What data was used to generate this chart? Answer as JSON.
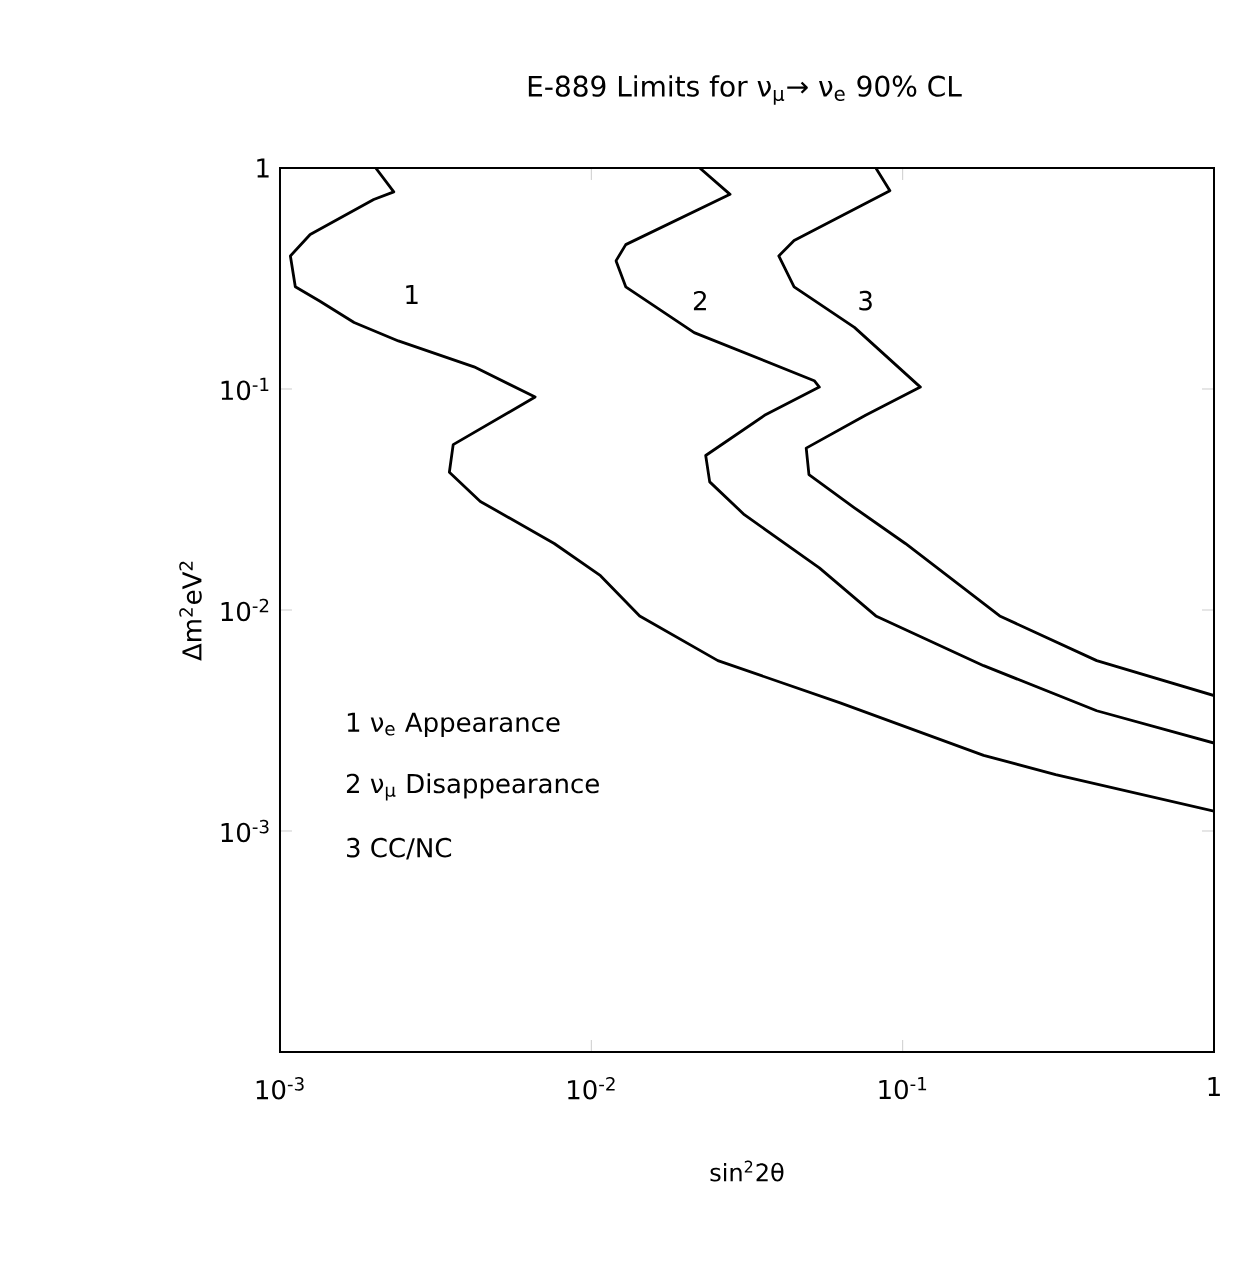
{
  "chart_data": {
    "type": "line",
    "title": "E-889 Limits for ν$_{μ}$→ ν$_{e}$ 90% CL",
    "xlabel": "sin$^{2}$2θ",
    "ylabel": "Δm$^{2}$eV$^{2}$",
    "log": "xy",
    "marker": "none",
    "line_style": "solid",
    "xlim": [
      0.001,
      1
    ],
    "ylim": [
      0.0001,
      1
    ],
    "xticks": [
      {
        "value": 0.001,
        "label": "10$^{-3}$"
      },
      {
        "value": 0.01,
        "label": "10$^{-2}$"
      },
      {
        "value": 0.1,
        "label": "10$^{-1}$"
      },
      1
    ],
    "yticks": [
      {
        "value": 0.0001,
        "label": null
      },
      {
        "value": 0.001,
        "label": "10$^{-3}$"
      },
      {
        "value": 0.01,
        "label": "10$^{-2}$"
      },
      {
        "value": 0.1,
        "label": "10$^{-1}$"
      },
      1
    ],
    "series": [
      {
        "color": "#000000",
        "x": [
          0.00203,
          0.00232,
          0.002,
          0.00125,
          0.00108,
          0.00112,
          0.00134,
          0.00173,
          0.0024,
          0.0042,
          0.0066,
          0.0036,
          0.0035,
          0.0044,
          0.0076,
          0.0107,
          0.0143,
          0.0255,
          0.063,
          0.182,
          0.31,
          1
        ],
        "values": [
          1,
          0.78,
          0.72,
          0.5,
          0.4,
          0.29,
          0.25,
          0.2,
          0.165,
          0.126,
          0.092,
          0.056,
          0.042,
          0.031,
          0.02,
          0.0143,
          0.0094,
          0.0059,
          0.0038,
          0.0022,
          0.0018,
          0.00123
        ]
      },
      {
        "color": "#000000",
        "x": [
          0.0223,
          0.0279,
          0.0129,
          0.012,
          0.0129,
          0.0214,
          0.052,
          0.054,
          0.036,
          0.0233,
          0.024,
          0.031,
          0.054,
          0.082,
          0.182,
          0.42,
          1
        ],
        "values": [
          1,
          0.76,
          0.45,
          0.38,
          0.29,
          0.18,
          0.109,
          0.102,
          0.076,
          0.05,
          0.038,
          0.027,
          0.0155,
          0.0094,
          0.0056,
          0.0035,
          0.0025
        ]
      },
      {
        "color": "#000000",
        "x": [
          0.082,
          0.091,
          0.0448,
          0.04,
          0.0448,
          0.07,
          0.114,
          0.076,
          0.049,
          0.05,
          0.07,
          0.102,
          0.205,
          0.42,
          1
        ],
        "values": [
          1,
          0.79,
          0.47,
          0.4,
          0.29,
          0.19,
          0.102,
          0.076,
          0.054,
          0.041,
          0.029,
          0.02,
          0.0094,
          0.0059,
          0.0041
        ]
      }
    ],
    "annotations": [
      "1",
      "2",
      "3",
      "1 ν$_{e}$ Appearance",
      "2 ν$_{μ}$ Disappearance",
      "3 CC/NC"
    ]
  }
}
